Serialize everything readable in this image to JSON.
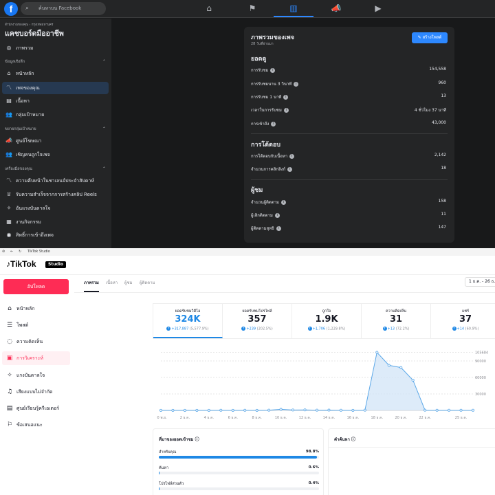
{
  "facebook": {
    "search_placeholder": "ค้นหาบน Facebook",
    "sidebar": {
      "breadcrumb": "สำนักงานของคุณ › กรุงเทพมหานคร",
      "page_name": "แคชบอร์ดมืออาชีพ",
      "overview": "ภาพรวม",
      "section_insights": "ข้อมูลเชิงลึก",
      "items_insights": [
        "หน้าหลัก",
        "เพจของคุณ",
        "เนื้อหา",
        "กลุ่มเป้าหมาย"
      ],
      "section_audience": "ขยายกลุ่มเป้าหมาย",
      "items_audience": [
        "ศูนย์โฆษณา",
        "เชิญคนถูกใจเพจ"
      ],
      "section_tools": "เครื่องมือของคุณ",
      "items_tools": [
        "ความคืบหน้าในชาเลนจ์ประจำสัปดาห์",
        "รับความสำเร็จจากการสร้างคลิป Reels",
        "อันแรงบันดาลใจ",
        "งานกิจกรรม",
        "สิทธิ์การเข้าถึงเพจ"
      ]
    },
    "card": {
      "title": "ภาพรวมของเพจ",
      "subtitle": "28 วันที่ผ่านมา",
      "create_button": "สร้างโพสต์",
      "sections": [
        {
          "heading": "ยอดดู",
          "rows": [
            {
              "label": "การรับชม",
              "value": "154,558"
            },
            {
              "label": "การรับชมนาน 3 วินาที",
              "value": "960"
            },
            {
              "label": "การรับชม 1 นาที",
              "value": "13"
            },
            {
              "label": "เวลาในการรับชม",
              "value": "4 ชั่วโมง 37 นาที"
            },
            {
              "label": "การเข้าถึง",
              "value": "43,000"
            }
          ]
        },
        {
          "heading": "การโต้ตอบ",
          "rows": [
            {
              "label": "การโต้ตอบกับเนื้อหา",
              "value": "2,142"
            },
            {
              "label": "จำนวนการคลิกลิงก์",
              "value": "18"
            }
          ]
        },
        {
          "heading": "ผู้ชม",
          "rows": [
            {
              "label": "จำนวนผู้ติดตาม",
              "value": "158"
            },
            {
              "label": "ผู้เลิกติดตาม",
              "value": "11"
            },
            {
              "label": "ผู้ติดตามสุทธิ",
              "value": "147"
            }
          ]
        }
      ]
    },
    "colors": {
      "accent": "#2d88ff",
      "bg": "#18191a",
      "panel": "#242526"
    }
  },
  "tiktok": {
    "browser_title": "TikTok Studio",
    "logo": "TikTok",
    "studio_badge": "Studio",
    "upload_button": "อัปโหลด",
    "nav": [
      "หน้าหลัก",
      "โพสต์",
      "ความคิดเห็น",
      "การวิเคราะห์",
      "แรงบันดาลใจ",
      "เสียงแบบไม่จำกัด",
      "ศูนย์เรียนรู้ครีเอเตอร์",
      "ข้อเสนอแนะ"
    ],
    "active_nav": 3,
    "tabs": [
      "ภาพรวม",
      "เนื้อหา",
      "ผู้ชม",
      "ผู้ติดตาม"
    ],
    "date_range": "1 ธ.ค. - 26 ธ.ค.",
    "metrics": [
      {
        "label": "ยอดรับชมวิดีโอ",
        "value": "324K",
        "change": "+317,887",
        "pct": "(5,577.9%)"
      },
      {
        "label": "ยอดรับชมโปรไฟล์",
        "value": "357",
        "change": "+239",
        "pct": "(202.5%)"
      },
      {
        "label": "ถูกใจ",
        "value": "1.9K",
        "change": "+1,706",
        "pct": "(1,229.8%)"
      },
      {
        "label": "ความคิดเห็น",
        "value": "31",
        "change": "+13",
        "pct": "(72.2%)"
      },
      {
        "label": "แชร์",
        "value": "37",
        "change": "+14",
        "pct": "(60.9%)"
      }
    ],
    "source_panel": {
      "title": "ที่มาของยอดเข้าชม",
      "rows": [
        {
          "label": "สำหรับคุณ",
          "value": "98.8%",
          "fraction": 0.988
        },
        {
          "label": "ค้นหา",
          "value": "0.6%",
          "fraction": 0.006
        },
        {
          "label": "โปรไฟล์ส่วนตัว",
          "value": "0.4%",
          "fraction": 0.004
        }
      ]
    },
    "search_panel": {
      "title": "คำค้นหา"
    },
    "colors": {
      "brand": "#fe2c55",
      "accent": "#1e88e5"
    }
  },
  "chart_data": {
    "type": "area",
    "x": [
      "30 พ.ย.",
      "1 ธ.ค.",
      "2 ธ.ค.",
      "3 ธ.ค.",
      "4 ธ.ค.",
      "5 ธ.ค.",
      "6 ธ.ค.",
      "7 ธ.ค.",
      "8 ธ.ค.",
      "9 ธ.ค.",
      "10 ธ.ค.",
      "11 ธ.ค.",
      "12 ธ.ค.",
      "13 ธ.ค.",
      "14 ธ.ค.",
      "15 ธ.ค.",
      "16 ธ.ค.",
      "17 ธ.ค.",
      "18 ธ.ค.",
      "19 ธ.ค.",
      "20 ธ.ค.",
      "21 ธ.ค.",
      "22 ธ.ค.",
      "23 ธ.ค.",
      "24 ธ.ค.",
      "25 ธ.ค.",
      "26 ธ.ค."
    ],
    "tick_labels": [
      "30 พ.ย.",
      "2 ธ.ค.",
      "4 ธ.ค.",
      "6 ธ.ค.",
      "8 ธ.ค.",
      "10 ธ.ค.",
      "12 ธ.ค.",
      "14 ธ.ค.",
      "16 ธ.ค.",
      "18 ธ.ค.",
      "20 ธ.ค.",
      "22 ธ.ค.",
      "25 ธ.ค."
    ],
    "series": [
      {
        "values": [
          200,
          200,
          200,
          200,
          200,
          300,
          200,
          300,
          200,
          500,
          2000,
          800,
          1000,
          500,
          600,
          300,
          200,
          400,
          105684,
          82000,
          78000,
          55000,
          400,
          300,
          300,
          300,
          300
        ]
      }
    ],
    "y_ticks": [
      "105684",
      "90000",
      "60000",
      "30000"
    ],
    "ylim": [
      0,
      110000
    ],
    "grid": true
  }
}
